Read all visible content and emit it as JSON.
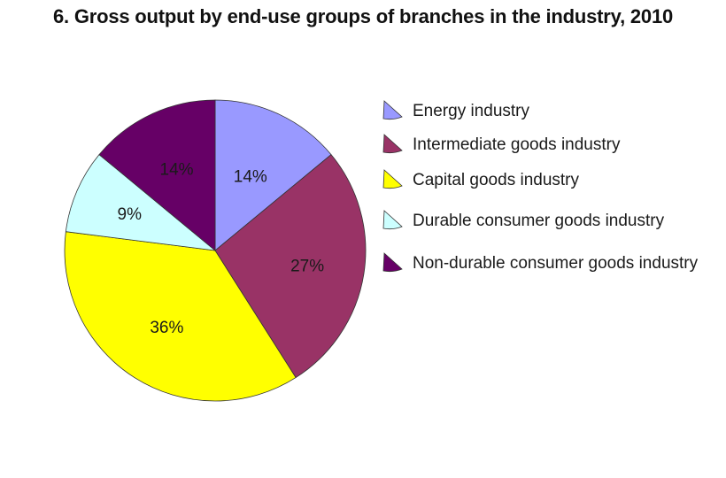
{
  "chart_data": {
    "type": "pie",
    "title": "6. Gross output by end-use groups of branches in the industry, 2010",
    "categories": [
      "Energy industry",
      "Intermediate goods industry",
      "Capital goods industry",
      "Durable consumer goods industry",
      "Non-durable consumer goods industry"
    ],
    "values": [
      14,
      27,
      36,
      9,
      14
    ],
    "labels": [
      "14%",
      "27%",
      "36%",
      "9%",
      "14%"
    ],
    "colors": [
      "#9999ff",
      "#993366",
      "#ffff00",
      "#ccffff",
      "#660066"
    ],
    "legend_position": "right"
  }
}
